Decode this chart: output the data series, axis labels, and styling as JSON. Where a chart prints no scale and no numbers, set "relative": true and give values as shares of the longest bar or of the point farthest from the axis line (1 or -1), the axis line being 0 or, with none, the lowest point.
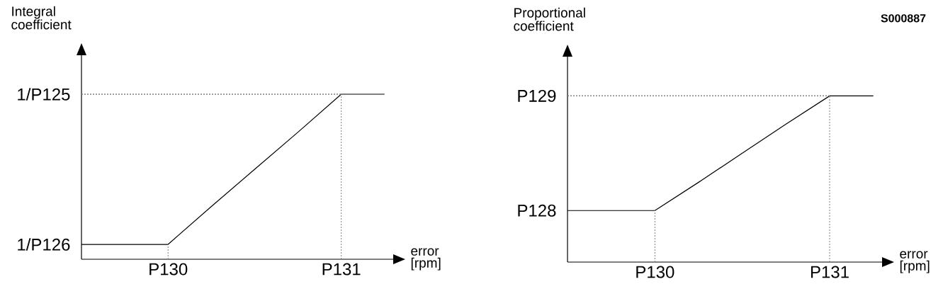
{
  "chart_data": [
    {
      "type": "line",
      "ylabel": "Integral coefficient",
      "xlabel": "error [rpm]",
      "relative": true,
      "categories": [
        null,
        null,
        "P130",
        null,
        null,
        null,
        "P131",
        null
      ],
      "series": [
        {
          "color": "#000000",
          "values": [
            0.09,
            0.09,
            0.09,
            0.32,
            0.545,
            0.77,
            1,
            1
          ]
        }
      ],
      "ref_lines": [
        {
          "axis": "y",
          "value": 1,
          "label": "1/P125",
          "line_style": "dotted",
          "color": "#808080"
        },
        {
          "axis": "x",
          "value": "P130",
          "line_style": "dotted",
          "color": "#808080"
        },
        {
          "axis": "x",
          "value": "P131",
          "line_style": "dotted",
          "color": "#808080"
        }
      ],
      "annotations": [
        "1/P126"
      ]
    },
    {
      "type": "line",
      "ylabel": "Proportional coefficient",
      "xlabel": "error [rpm]",
      "relative": true,
      "categories": [
        null,
        null,
        "P130",
        null,
        null,
        null,
        "P131",
        null
      ],
      "series": [
        {
          "color": "#000000",
          "values": [
            0.31,
            0.31,
            0.31,
            0.48,
            0.655,
            0.83,
            1,
            1
          ]
        }
      ],
      "ref_lines": [
        {
          "axis": "y",
          "value": 1,
          "label": "P129",
          "line_style": "dotted",
          "color": "#808080"
        },
        {
          "axis": "x",
          "value": "P130",
          "line_style": "dotted",
          "color": "#808080"
        },
        {
          "axis": "x",
          "value": "P131",
          "line_style": "dotted",
          "color": "#808080"
        }
      ],
      "annotations": [
        "P128",
        "S000887"
      ]
    }
  ]
}
